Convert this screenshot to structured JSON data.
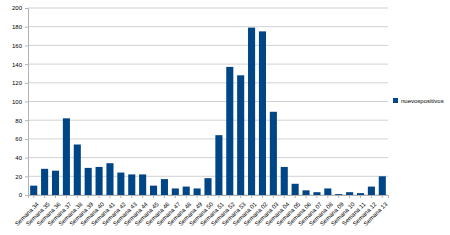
{
  "chart_data": {
    "type": "bar",
    "categories": [
      "Semana 34",
      "Semana 35",
      "Semana 36",
      "Semana 37",
      "Semana 38",
      "Semana 39",
      "Semana 40",
      "Semana 41",
      "Semana 42",
      "Semana 43",
      "Semana 44",
      "Semana 45",
      "Semana 46",
      "Semana 47",
      "Semana 48",
      "Semana 49",
      "Semana 50",
      "Semana 51",
      "Semana 52",
      "Semana 53",
      "Semana 01",
      "Semana 02",
      "Semana 03",
      "Semana 04",
      "Semana 05",
      "Semana 06",
      "Semana 07",
      "Semana 08",
      "Semana 09",
      "Semana 10",
      "Semana 11",
      "Semana 12",
      "Semana 13"
    ],
    "series": [
      {
        "name": "nuevospositivos",
        "color": "#004586",
        "values": [
          10,
          28,
          26,
          82,
          54,
          29,
          30,
          34,
          24,
          22,
          22,
          10,
          17,
          7,
          9,
          7,
          18,
          64,
          137,
          128,
          179,
          175,
          89,
          30,
          12,
          5,
          3,
          7,
          1,
          3,
          2,
          9,
          20
        ]
      }
    ],
    "ylim": [
      0,
      200
    ],
    "yticks": [
      0,
      20,
      40,
      60,
      80,
      100,
      120,
      140,
      160,
      180,
      200
    ],
    "grid": true,
    "legend": "right"
  }
}
